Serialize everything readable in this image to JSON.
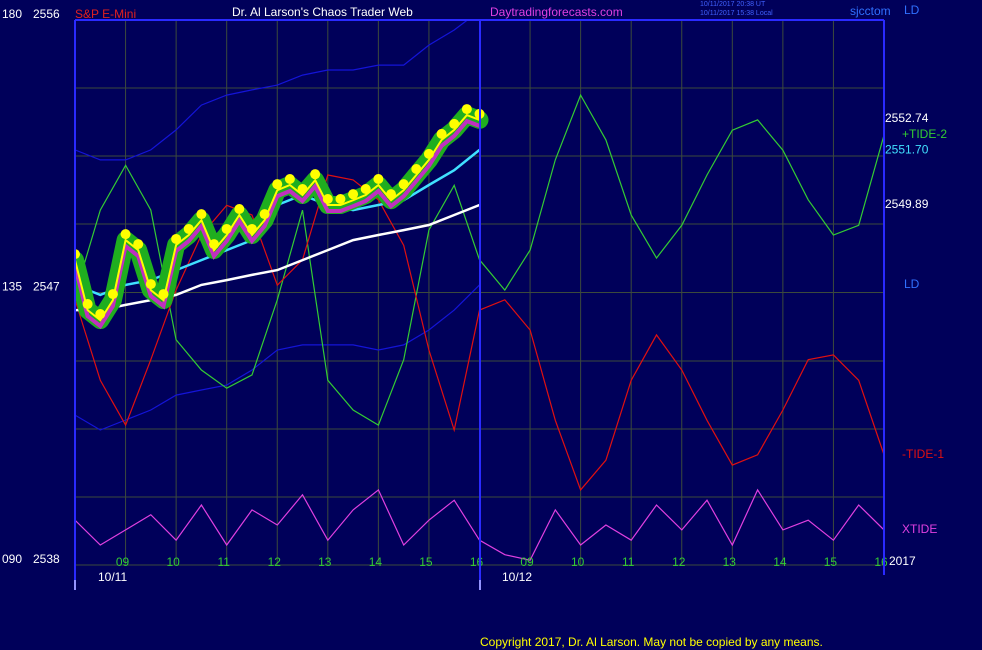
{
  "chart_data": {
    "type": "line",
    "symbol": "S&P E-Mini",
    "title": "Dr. Al Larson's Chaos Trader Web",
    "site": "Daytradingforecasts.com",
    "timestamps": [
      "10/11/2017 20:38 UT",
      "10/11/2017 15:38 Local"
    ],
    "user": "sjcctom",
    "corner_label": "LD",
    "band_label": "LD",
    "date_labels": [
      "10/11",
      "10/12"
    ],
    "year": "2017",
    "copyright": "Copyright 2017, Dr. Al Larson. May not be copied by any means.",
    "xlim": [
      8,
      24
    ],
    "xticks": [
      {
        "value": 9,
        "label": "09"
      },
      10,
      11,
      12,
      13,
      14,
      15,
      16,
      {
        "value": 17,
        "label": "09"
      },
      {
        "value": 18,
        "label": "10"
      },
      {
        "value": 19,
        "label": "11"
      },
      {
        "value": 20,
        "label": "12"
      },
      {
        "value": 21,
        "label": "13"
      },
      {
        "value": 22,
        "label": "14"
      },
      {
        "value": 23,
        "label": "15"
      },
      {
        "value": 24,
        "label": "16"
      }
    ],
    "ylim": [
      2538,
      2556
    ],
    "yticks": [
      2538,
      2547,
      2556
    ],
    "y2lim": [
      90,
      180
    ],
    "y2ticks": [
      {
        "value": 90,
        "label": "090"
      },
      135,
      180
    ],
    "grid": true,
    "right_labels": {
      "values": [
        2552.74,
        2551.7,
        2549.89
      ],
      "value_labels": [
        "2552.74",
        "2551.70",
        "2549.89"
      ],
      "colors": [
        "#ffffff",
        "#40e0ff",
        "#ffffff"
      ]
    },
    "series": [
      {
        "role": "band",
        "color": "#1414d8",
        "x": [
          8,
          8.5,
          9,
          9.5,
          10,
          10.5,
          11,
          11.5,
          12,
          12.5,
          13,
          13.5,
          14,
          14.5,
          15,
          15.5,
          16
        ],
        "values": [
          2551.71,
          2551.38,
          2551.38,
          2551.71,
          2552.37,
          2553.19,
          2553.52,
          2553.69,
          2553.85,
          2554.18,
          2554.35,
          2554.35,
          2554.51,
          2554.51,
          2555.17,
          2555.67,
          2556.3
        ]
      },
      {
        "role": "band",
        "color": "#1414d8",
        "x": [
          8,
          8.5,
          9,
          9.5,
          10,
          10.5,
          11,
          11.5,
          12,
          12.5,
          13,
          13.5,
          14,
          14.5,
          15,
          15.5,
          16
        ],
        "values": [
          2542.95,
          2542.46,
          2542.79,
          2543.12,
          2543.61,
          2543.78,
          2543.94,
          2544.44,
          2545.1,
          2545.27,
          2545.27,
          2545.27,
          2545.1,
          2545.27,
          2545.76,
          2546.42,
          2547.25
        ]
      },
      {
        "name": "+TIDE-2",
        "role": "tide",
        "axis": "y2",
        "color": "#33cc33",
        "x": [
          8,
          8.5,
          9,
          9.5,
          10,
          10.5,
          11,
          11.5,
          12,
          12.5,
          13,
          13.5,
          14,
          14.5,
          15,
          15.5,
          16,
          16.5,
          17,
          17.5,
          18,
          18.5,
          19,
          19.5,
          20,
          20.5,
          21,
          21.5,
          22,
          22.5,
          23,
          23.5,
          24
        ],
        "values": [
          134.6,
          148.6,
          156.0,
          148.6,
          127.2,
          122.2,
          119.2,
          121.4,
          133.8,
          148.6,
          120.5,
          115.6,
          113.1,
          123.9,
          145.3,
          152.7,
          140.4,
          135.4,
          142.0,
          156.9,
          167.6,
          160.2,
          147.8,
          140.7,
          146.1,
          154.4,
          161.8,
          163.5,
          158.5,
          150.3,
          144.5,
          146.1,
          161.0
        ]
      },
      {
        "name": "-TIDE-1",
        "role": "tide",
        "axis": "y2",
        "color": "#e01010",
        "x": [
          8,
          8.5,
          9,
          9.5,
          10,
          10.5,
          11,
          11.5,
          12,
          12.5,
          13,
          13.5,
          14,
          14.5,
          15,
          15.5,
          16,
          16.5,
          17,
          17.5,
          18,
          18.5,
          19,
          19.5,
          20,
          20.5,
          21,
          21.5,
          22,
          22.5,
          23,
          23.5,
          24
        ],
        "values": [
          133.8,
          120.5,
          113.1,
          123.9,
          135.4,
          144.5,
          149.4,
          147.8,
          136.2,
          140.4,
          154.4,
          153.6,
          150.3,
          142.8,
          125.5,
          112.3,
          132.1,
          133.8,
          128.8,
          113.9,
          102.4,
          107.3,
          120.5,
          128.0,
          122.2,
          113.9,
          106.5,
          108.2,
          115.6,
          123.9,
          124.7,
          120.5,
          108.2
        ]
      },
      {
        "name": "XTIDE",
        "role": "tide",
        "axis": "y2",
        "color": "#e040e0",
        "x": [
          8,
          8.5,
          9,
          9.5,
          10,
          10.5,
          11,
          11.5,
          12,
          12.5,
          13,
          13.5,
          14,
          14.5,
          15,
          15.5,
          16,
          16.5,
          17,
          17.5,
          18,
          18.5,
          19,
          19.5,
          20,
          20.5,
          21,
          21.5,
          22,
          22.5,
          23,
          23.5,
          24
        ],
        "values": [
          97.4,
          93.3,
          95.8,
          98.3,
          94.1,
          99.9,
          93.3,
          99.1,
          96.6,
          101.6,
          94.1,
          99.1,
          102.4,
          93.3,
          97.4,
          100.7,
          94.1,
          91.7,
          90.8,
          99.1,
          93.3,
          96.6,
          94.1,
          99.9,
          95.8,
          100.7,
          93.3,
          102.4,
          95.8,
          97.4,
          94.1,
          99.9,
          95.8
        ]
      },
      {
        "role": "average",
        "color": "#ffffff",
        "x": [
          8,
          8.5,
          9,
          9.5,
          10,
          10.5,
          11,
          11.5,
          12,
          12.5,
          13,
          13.5,
          14,
          14.5,
          15,
          15.5,
          16
        ],
        "values": [
          2546.42,
          2546.42,
          2546.59,
          2546.75,
          2546.92,
          2547.25,
          2547.41,
          2547.58,
          2547.74,
          2548.07,
          2548.4,
          2548.73,
          2548.9,
          2549.06,
          2549.23,
          2549.56,
          2549.89
        ]
      },
      {
        "role": "average",
        "color": "#40e0ff",
        "x": [
          8,
          8.5,
          9,
          9.5,
          10,
          10.5,
          11,
          11.5,
          12,
          12.5,
          13,
          13.5,
          14,
          14.5,
          15,
          15.5,
          16
        ],
        "values": [
          2547.25,
          2546.92,
          2547.25,
          2547.41,
          2547.74,
          2548.07,
          2548.4,
          2548.73,
          2549.89,
          2550.22,
          2549.89,
          2549.72,
          2549.89,
          2550.05,
          2550.55,
          2551.04,
          2551.71
        ]
      },
      {
        "role": "price",
        "color": "#ffff00",
        "x": [
          8,
          8.25,
          8.5,
          8.75,
          9,
          9.25,
          9.5,
          9.75,
          10,
          10.25,
          10.5,
          10.75,
          11,
          11.25,
          11.5,
          11.75,
          12,
          12.25,
          12.5,
          12.75,
          13,
          13.25,
          13.5,
          13.75,
          14,
          14.25,
          14.5,
          14.75,
          15,
          15.25,
          15.5,
          15.75,
          16
        ],
        "values": [
          2548.07,
          2546.42,
          2546.09,
          2546.75,
          2548.73,
          2548.4,
          2547.08,
          2546.75,
          2548.57,
          2548.9,
          2549.39,
          2548.4,
          2548.9,
          2549.56,
          2548.9,
          2549.39,
          2550.38,
          2550.55,
          2550.22,
          2550.71,
          2549.89,
          2549.89,
          2550.05,
          2550.22,
          2550.55,
          2550.05,
          2550.38,
          2550.88,
          2551.38,
          2552.04,
          2552.37,
          2552.86,
          2552.7
        ]
      }
    ]
  }
}
